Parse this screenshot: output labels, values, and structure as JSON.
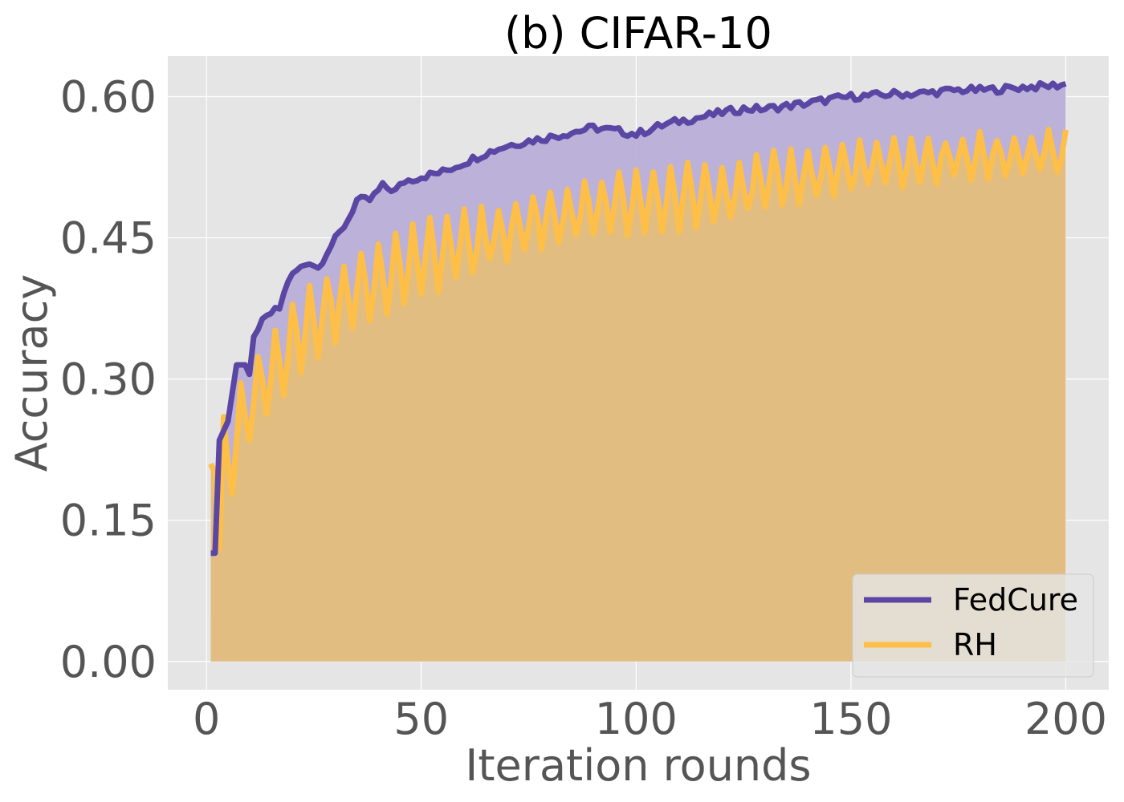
{
  "chart_data": {
    "type": "line",
    "title": "(b) CIFAR-10",
    "xlabel": "Iteration rounds",
    "ylabel": "Accuracy",
    "xlim": [
      -9,
      210
    ],
    "ylim": [
      -0.03,
      0.643
    ],
    "xticks": [
      0,
      50,
      100,
      150,
      200
    ],
    "xtick_labels": [
      "0",
      "50",
      "100",
      "150",
      "200"
    ],
    "yticks": [
      0.0,
      0.15,
      0.3,
      0.45,
      0.6
    ],
    "ytick_labels": [
      "0.00",
      "0.15",
      "0.30",
      "0.45",
      "0.60"
    ],
    "grid": true,
    "legend_position": "bottom-right",
    "series": [
      {
        "name": "FedCure",
        "color": "#5b47a3",
        "fill_color": "#b8aed8",
        "x_range": [
          1,
          200
        ],
        "anchors": [
          [
            1,
            0.115
          ],
          [
            2,
            0.115
          ],
          [
            3,
            0.235
          ],
          [
            5,
            0.255
          ],
          [
            7,
            0.315
          ],
          [
            9,
            0.315
          ],
          [
            10,
            0.305
          ],
          [
            11,
            0.345
          ],
          [
            13,
            0.36
          ],
          [
            15,
            0.37
          ],
          [
            17,
            0.375
          ],
          [
            19,
            0.405
          ],
          [
            21,
            0.415
          ],
          [
            24,
            0.425
          ],
          [
            26,
            0.418
          ],
          [
            28,
            0.435
          ],
          [
            31,
            0.455
          ],
          [
            33,
            0.47
          ],
          [
            35,
            0.49
          ],
          [
            38,
            0.49
          ],
          [
            41,
            0.505
          ],
          [
            44,
            0.5
          ],
          [
            46,
            0.51
          ],
          [
            50,
            0.515
          ],
          [
            55,
            0.52
          ],
          [
            60,
            0.53
          ],
          [
            65,
            0.54
          ],
          [
            70,
            0.548
          ],
          [
            75,
            0.553
          ],
          [
            80,
            0.557
          ],
          [
            85,
            0.562
          ],
          [
            90,
            0.567
          ],
          [
            95,
            0.564
          ],
          [
            100,
            0.56
          ],
          [
            105,
            0.568
          ],
          [
            110,
            0.574
          ],
          [
            115,
            0.578
          ],
          [
            120,
            0.583
          ],
          [
            125,
            0.587
          ],
          [
            130,
            0.587
          ],
          [
            135,
            0.59
          ],
          [
            140,
            0.593
          ],
          [
            145,
            0.597
          ],
          [
            150,
            0.6
          ],
          [
            155,
            0.601
          ],
          [
            160,
            0.603
          ],
          [
            165,
            0.603
          ],
          [
            170,
            0.605
          ],
          [
            175,
            0.607
          ],
          [
            180,
            0.607
          ],
          [
            185,
            0.608
          ],
          [
            190,
            0.61
          ],
          [
            195,
            0.611
          ],
          [
            200,
            0.613
          ]
        ],
        "noise": 0.004
      },
      {
        "name": "RH",
        "color": "#fdbf47",
        "fill_color": "#e2bd82",
        "x_range": [
          1,
          200
        ],
        "start_points": [
          [
            1,
            0.21
          ],
          [
            2,
            0.2
          ],
          [
            3,
            0.12
          ],
          [
            4,
            0.26
          ]
        ],
        "lower_anchors": [
          [
            5,
            0.16
          ],
          [
            10,
            0.23
          ],
          [
            20,
            0.3
          ],
          [
            30,
            0.34
          ],
          [
            40,
            0.37
          ],
          [
            50,
            0.39
          ],
          [
            60,
            0.41
          ],
          [
            70,
            0.43
          ],
          [
            80,
            0.445
          ],
          [
            90,
            0.45
          ],
          [
            100,
            0.455
          ],
          [
            110,
            0.46
          ],
          [
            120,
            0.47
          ],
          [
            130,
            0.48
          ],
          [
            140,
            0.49
          ],
          [
            150,
            0.5
          ],
          [
            160,
            0.505
          ],
          [
            170,
            0.51
          ],
          [
            180,
            0.515
          ],
          [
            190,
            0.518
          ],
          [
            200,
            0.52
          ]
        ],
        "upper_anchors": [
          [
            5,
            0.26
          ],
          [
            10,
            0.31
          ],
          [
            20,
            0.38
          ],
          [
            30,
            0.42
          ],
          [
            40,
            0.445
          ],
          [
            50,
            0.465
          ],
          [
            60,
            0.475
          ],
          [
            70,
            0.485
          ],
          [
            80,
            0.5
          ],
          [
            90,
            0.51
          ],
          [
            100,
            0.52
          ],
          [
            110,
            0.525
          ],
          [
            120,
            0.53
          ],
          [
            130,
            0.535
          ],
          [
            140,
            0.545
          ],
          [
            150,
            0.55
          ],
          [
            160,
            0.553
          ],
          [
            170,
            0.555
          ],
          [
            180,
            0.557
          ],
          [
            190,
            0.558
          ],
          [
            200,
            0.56
          ]
        ],
        "oscillation_period": 4
      }
    ]
  }
}
